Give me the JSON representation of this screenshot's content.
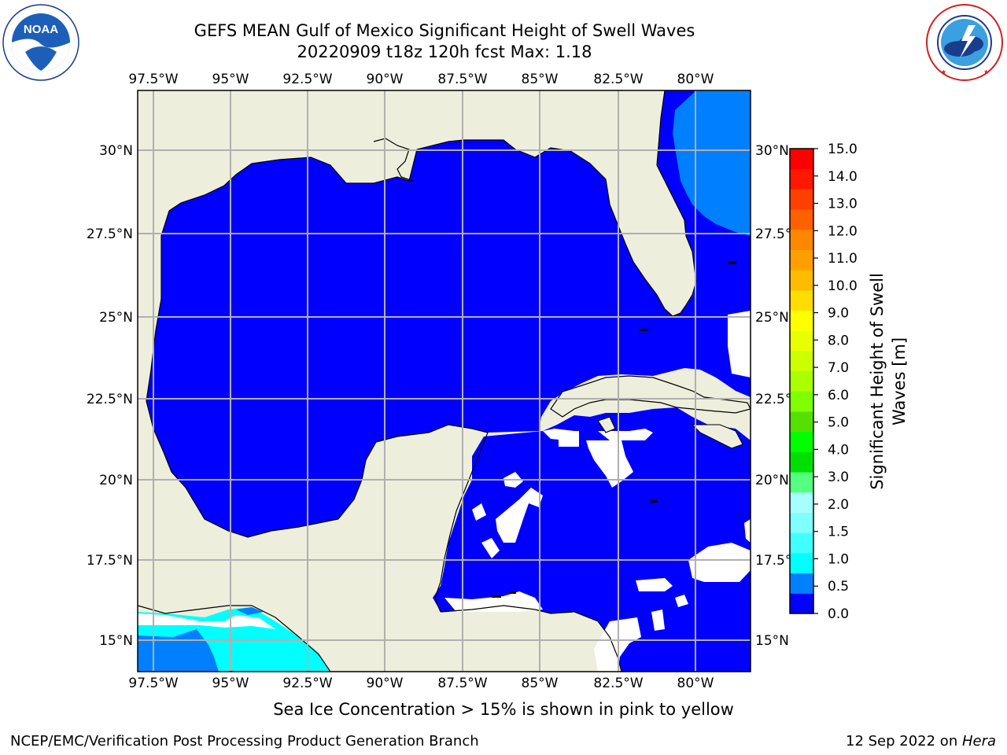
{
  "header": {
    "title_line1": "GEFS MEAN Gulf of Mexico Significant Height of Swell Waves",
    "title_line2": "20220909 t18z 120h fcst   Max: 1.18"
  },
  "logos": {
    "left": {
      "text": "NOAA",
      "ring_text": "NATIONAL OCEANIC AND ATMOSPHERIC ADMINISTRATION · U.S. DEPARTMENT OF COMMERCE"
    },
    "right": {
      "ring_text": "NATIONAL WEATHER SERVICE"
    }
  },
  "map": {
    "lon_labels": [
      "97.5°W",
      "95°W",
      "92.5°W",
      "90°W",
      "87.5°W",
      "85°W",
      "82.5°W",
      "80°W"
    ],
    "lat_labels": [
      "30°N",
      "27.5°N",
      "25°N",
      "22.5°N",
      "20°N",
      "17.5°N",
      "15°N"
    ],
    "colors": {
      "land": "#eeeedd",
      "water": "#0000ff",
      "light_blue": "#0080ff",
      "cyan": "#00ffff",
      "grid": "#b0b0b0"
    }
  },
  "colorbar": {
    "label_line1": "Significant Height of Swell",
    "label_line2": "Waves [m]",
    "ticks": [
      "15.0",
      "14.0",
      "13.0",
      "12.0",
      "11.0",
      "10.0",
      "9.0",
      "8.0",
      "7.0",
      "6.0",
      "5.0",
      "4.0",
      "3.0",
      "2.0",
      "1.5",
      "1.0",
      "0.5",
      "0.0"
    ],
    "colors_bottom_to_top": [
      "#0000ff",
      "#0080ff",
      "#00ffff",
      "#40ffff",
      "#80ffff",
      "#a8ffff",
      "#55ff80",
      "#00e000",
      "#00ff00",
      "#55e000",
      "#80ff00",
      "#aaff00",
      "#ccff00",
      "#e8ff00",
      "#ffff00",
      "#ffdd00",
      "#ffbb00",
      "#ffa000",
      "#ff8800",
      "#ff6000",
      "#ff4000",
      "#ff1800",
      "#ff0000"
    ]
  },
  "footer": {
    "caption": "Sea Ice Concentration > 15% is shown in pink to yellow",
    "credit_left": "NCEP/EMC/Verification Post Processing Product Generation Branch",
    "credit_right_date": "12 Sep 2022 on ",
    "credit_right_host": "Hera"
  }
}
